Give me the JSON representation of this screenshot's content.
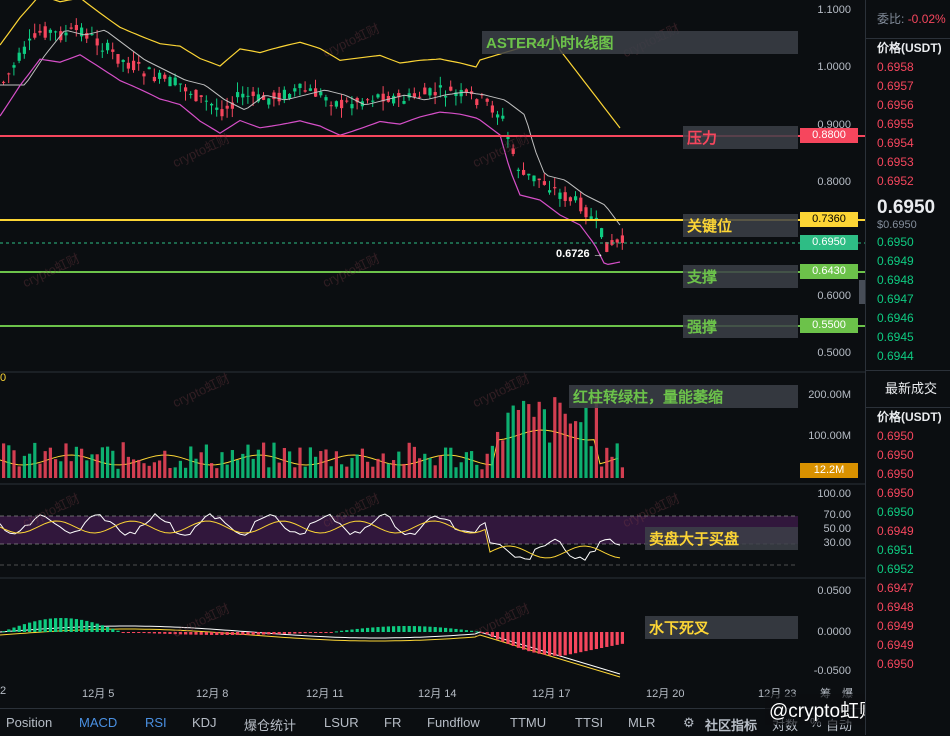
{
  "price_axis": [
    "1.1000",
    "1.0000",
    "0.9000",
    "0.8000",
    "0.6000",
    "0.5000"
  ],
  "vol_axis": [
    "200.00M",
    "100.00M"
  ],
  "rsi_axis": [
    "100.00",
    "70.00",
    "50.00",
    "30.00"
  ],
  "macd_axis": [
    "0.0500",
    "0.0000",
    "-0.0500"
  ],
  "level_tags": {
    "resistance": "0.8800",
    "key": "0.7360",
    "current": "0.6950",
    "support": "0.6430",
    "strong": "0.5500",
    "volume": "12.2M"
  },
  "low_marker": "0.6726",
  "annotations": {
    "title": "ASTER4小时k线图",
    "resistance": "压力",
    "key": "关键位",
    "support": "支撑",
    "strong": "强撑",
    "volume": "红柱转绿柱，量能萎缩",
    "rsi": "卖盘大于买盘",
    "macd": "水下死叉"
  },
  "dates": [
    "2",
    "12月 5",
    "12月 8",
    "12月 11",
    "12月 14",
    "12月 17",
    "12月 20",
    "12月 23"
  ],
  "left_stub": "0",
  "bottom_tabs": [
    "Position",
    "MACD",
    "RSI",
    "KDJ",
    "爆仓统计",
    "LSUR",
    "FR",
    "Fundflow",
    "TTMU",
    "TTSI",
    "MLR",
    "社区指标",
    "对数",
    "%",
    "自动"
  ],
  "corner_labels": [
    "筹",
    "爆"
  ],
  "watermark": "crypto虹财",
  "brand": "@crypto虹财",
  "right_panel": {
    "ratio_label": "委比:",
    "ratio_value": "-0.02%",
    "price_header": "价格(USDT)",
    "asks": [
      "0.6958",
      "0.6957",
      "0.6956",
      "0.6955",
      "0.6954",
      "0.6953",
      "0.6952"
    ],
    "mid_price": "0.6950",
    "mid_sub": "$0.6950",
    "bids": [
      "0.6950",
      "0.6949",
      "0.6948",
      "0.6947",
      "0.6946",
      "0.6945",
      "0.6944"
    ],
    "trades_title": "最新成交",
    "trades_header": "价格(USDT)",
    "trades": [
      {
        "p": "0.6950",
        "c": "#f6465d"
      },
      {
        "p": "0.6950",
        "c": "#f6465d"
      },
      {
        "p": "0.6950",
        "c": "#f6465d"
      },
      {
        "p": "0.6950",
        "c": "#f6465d"
      },
      {
        "p": "0.6950",
        "c": "#0ecb81"
      },
      {
        "p": "0.6949",
        "c": "#f6465d"
      },
      {
        "p": "0.6951",
        "c": "#0ecb81"
      },
      {
        "p": "0.6952",
        "c": "#0ecb81"
      },
      {
        "p": "0.6947",
        "c": "#f6465d"
      },
      {
        "p": "0.6948",
        "c": "#f6465d"
      },
      {
        "p": "0.6949",
        "c": "#f6465d"
      },
      {
        "p": "0.6949",
        "c": "#f6465d"
      },
      {
        "p": "0.6950",
        "c": "#f6465d"
      }
    ]
  },
  "colors": {
    "up": "#0ecb81",
    "down": "#f6465d",
    "yellow": "#fcd535",
    "green_line": "#6cc24a",
    "red_line": "#f6465d"
  }
}
